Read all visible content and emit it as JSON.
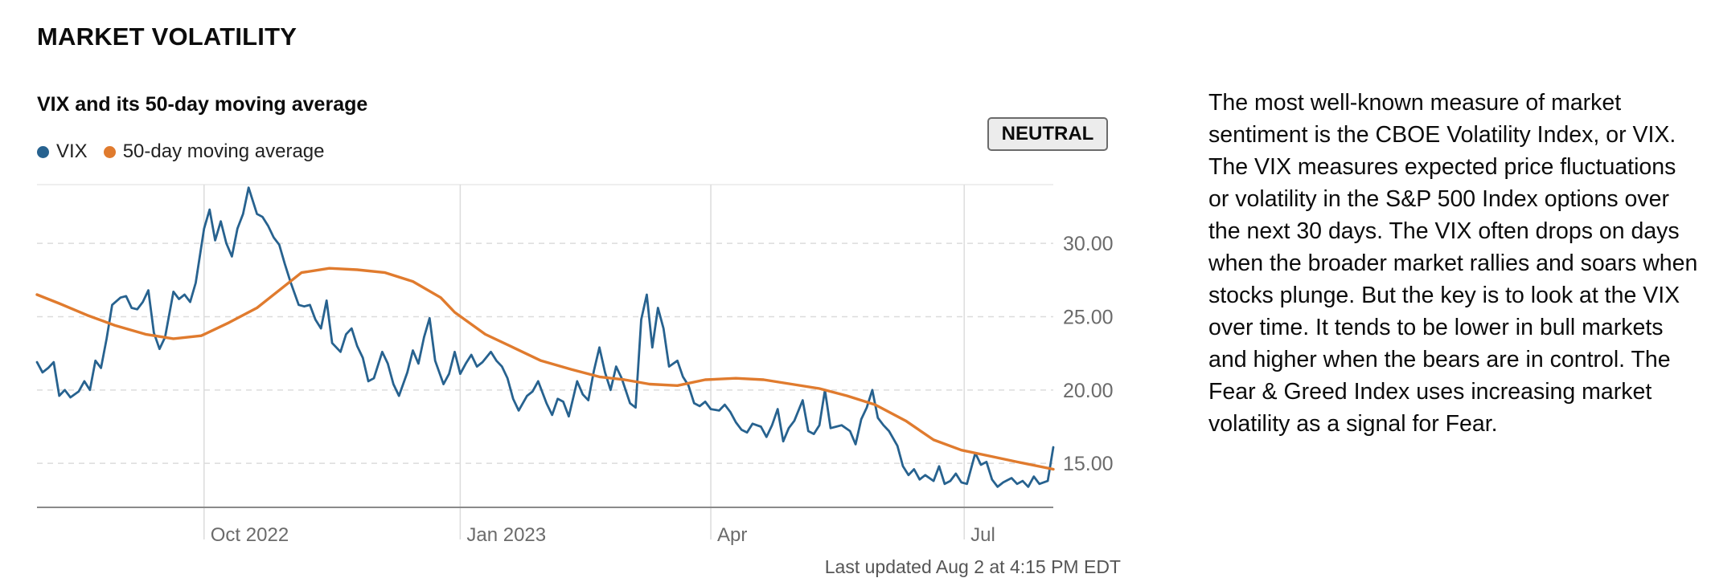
{
  "section_title": "MARKET VOLATILITY",
  "status_badge": "NEUTRAL",
  "last_updated": "Last updated Aug 2 at 4:15 PM EDT",
  "description": "The most well-known measure of market sentiment is the CBOE Volatility Index, or VIX. The VIX measures expected price fluctuations or volatility in the S&P 500 Index options over the next 30 days. The VIX often drops on days when the broader market rallies and soars when stocks plunge. But the key is to look at the VIX over time. It tends to be lower in bull markets and higher when the bears are in control. The Fear & Greed Index uses increasing market volatility as a signal for Fear.",
  "colors": {
    "vix": "#27628f",
    "moving_average": "#e07b2e",
    "grid": "#dcdcdc",
    "axis": "#8a8a8a"
  },
  "chart_data": {
    "type": "line",
    "title": "VIX and its 50-day moving average",
    "xlabel": "",
    "ylabel": "",
    "x_range": [
      "2022-08-02",
      "2023-08-02"
    ],
    "ylim": [
      12.0,
      34.0
    ],
    "y_axis_side": "right",
    "grid": true,
    "legend": "top-left",
    "x_tick_labels": [
      {
        "date": "2022-10-01",
        "label": "Oct 2022"
      },
      {
        "date": "2023-01-01",
        "label": "Jan 2023"
      },
      {
        "date": "2023-04-01",
        "label": "Apr"
      },
      {
        "date": "2023-07-01",
        "label": "Jul"
      }
    ],
    "y_tick_labels": [
      {
        "value": 15,
        "label": "15.00"
      },
      {
        "value": 20,
        "label": "20.00"
      },
      {
        "value": 25,
        "label": "25.00"
      },
      {
        "value": 30,
        "label": "30.00"
      }
    ],
    "series": [
      {
        "name": "VIX",
        "points": [
          [
            "2022-08-02",
            21.9
          ],
          [
            "2022-08-04",
            21.2
          ],
          [
            "2022-08-06",
            21.5
          ],
          [
            "2022-08-08",
            21.9
          ],
          [
            "2022-08-10",
            19.6
          ],
          [
            "2022-08-12",
            20.0
          ],
          [
            "2022-08-14",
            19.5
          ],
          [
            "2022-08-17",
            19.9
          ],
          [
            "2022-08-19",
            20.6
          ],
          [
            "2022-08-21",
            20.0
          ],
          [
            "2022-08-23",
            22.0
          ],
          [
            "2022-08-25",
            21.5
          ],
          [
            "2022-08-27",
            23.5
          ],
          [
            "2022-08-29",
            25.8
          ],
          [
            "2022-09-01",
            26.3
          ],
          [
            "2022-09-03",
            26.4
          ],
          [
            "2022-09-05",
            25.6
          ],
          [
            "2022-09-07",
            25.5
          ],
          [
            "2022-09-09",
            26.0
          ],
          [
            "2022-09-11",
            26.8
          ],
          [
            "2022-09-13",
            23.9
          ],
          [
            "2022-09-15",
            22.8
          ],
          [
            "2022-09-17",
            23.6
          ],
          [
            "2022-09-20",
            26.7
          ],
          [
            "2022-09-22",
            26.2
          ],
          [
            "2022-09-24",
            26.5
          ],
          [
            "2022-09-26",
            26.0
          ],
          [
            "2022-09-28",
            27.3
          ],
          [
            "2022-10-01",
            31.0
          ],
          [
            "2022-10-03",
            32.3
          ],
          [
            "2022-10-05",
            30.2
          ],
          [
            "2022-10-07",
            31.5
          ],
          [
            "2022-10-09",
            30.0
          ],
          [
            "2022-10-11",
            29.1
          ],
          [
            "2022-10-13",
            31.0
          ],
          [
            "2022-10-15",
            32.0
          ],
          [
            "2022-10-17",
            33.8
          ],
          [
            "2022-10-20",
            32.0
          ],
          [
            "2022-10-22",
            31.8
          ],
          [
            "2022-10-24",
            31.2
          ],
          [
            "2022-10-26",
            30.4
          ],
          [
            "2022-10-28",
            29.9
          ],
          [
            "2022-10-30",
            28.6
          ],
          [
            "2022-11-01",
            27.4
          ],
          [
            "2022-11-04",
            25.8
          ],
          [
            "2022-11-06",
            25.7
          ],
          [
            "2022-11-08",
            25.8
          ],
          [
            "2022-11-10",
            24.8
          ],
          [
            "2022-11-12",
            24.2
          ],
          [
            "2022-11-14",
            26.1
          ],
          [
            "2022-11-16",
            23.2
          ],
          [
            "2022-11-19",
            22.6
          ],
          [
            "2022-11-21",
            23.8
          ],
          [
            "2022-11-23",
            24.2
          ],
          [
            "2022-11-25",
            23.0
          ],
          [
            "2022-11-27",
            22.2
          ],
          [
            "2022-11-29",
            20.6
          ],
          [
            "2022-12-01",
            20.8
          ],
          [
            "2022-12-04",
            22.6
          ],
          [
            "2022-12-06",
            21.8
          ],
          [
            "2022-12-08",
            20.4
          ],
          [
            "2022-12-10",
            19.6
          ],
          [
            "2022-12-13",
            21.2
          ],
          [
            "2022-12-15",
            22.7
          ],
          [
            "2022-12-17",
            21.8
          ],
          [
            "2022-12-19",
            23.6
          ],
          [
            "2022-12-21",
            24.9
          ],
          [
            "2022-12-23",
            22.0
          ],
          [
            "2022-12-26",
            20.4
          ],
          [
            "2022-12-28",
            21.1
          ],
          [
            "2022-12-30",
            22.6
          ],
          [
            "2023-01-01",
            21.1
          ],
          [
            "2023-01-03",
            21.8
          ],
          [
            "2023-01-05",
            22.4
          ],
          [
            "2023-01-07",
            21.6
          ],
          [
            "2023-01-09",
            21.9
          ],
          [
            "2023-01-12",
            22.6
          ],
          [
            "2023-01-14",
            22.0
          ],
          [
            "2023-01-16",
            21.6
          ],
          [
            "2023-01-18",
            20.8
          ],
          [
            "2023-01-20",
            19.4
          ],
          [
            "2023-01-22",
            18.6
          ],
          [
            "2023-01-25",
            19.6
          ],
          [
            "2023-01-27",
            19.9
          ],
          [
            "2023-01-29",
            20.6
          ],
          [
            "2023-02-01",
            19.1
          ],
          [
            "2023-02-03",
            18.3
          ],
          [
            "2023-02-05",
            19.4
          ],
          [
            "2023-02-07",
            19.2
          ],
          [
            "2023-02-09",
            18.2
          ],
          [
            "2023-02-12",
            20.6
          ],
          [
            "2023-02-14",
            19.7
          ],
          [
            "2023-02-16",
            19.3
          ],
          [
            "2023-02-18",
            21.3
          ],
          [
            "2023-02-20",
            22.9
          ],
          [
            "2023-02-22",
            21.2
          ],
          [
            "2023-02-24",
            20.0
          ],
          [
            "2023-02-26",
            21.6
          ],
          [
            "2023-02-28",
            20.8
          ],
          [
            "2023-03-03",
            19.1
          ],
          [
            "2023-03-05",
            18.8
          ],
          [
            "2023-03-07",
            24.8
          ],
          [
            "2023-03-09",
            26.5
          ],
          [
            "2023-03-11",
            22.9
          ],
          [
            "2023-03-13",
            25.6
          ],
          [
            "2023-03-15",
            24.2
          ],
          [
            "2023-03-17",
            21.6
          ],
          [
            "2023-03-20",
            22.0
          ],
          [
            "2023-03-22",
            20.9
          ],
          [
            "2023-03-24",
            20.3
          ],
          [
            "2023-03-26",
            19.1
          ],
          [
            "2023-03-28",
            18.9
          ],
          [
            "2023-03-30",
            19.2
          ],
          [
            "2023-04-01",
            18.7
          ],
          [
            "2023-04-04",
            18.6
          ],
          [
            "2023-04-06",
            19.0
          ],
          [
            "2023-04-08",
            18.5
          ],
          [
            "2023-04-10",
            17.8
          ],
          [
            "2023-04-12",
            17.3
          ],
          [
            "2023-04-14",
            17.1
          ],
          [
            "2023-04-16",
            17.7
          ],
          [
            "2023-04-19",
            17.5
          ],
          [
            "2023-04-21",
            16.8
          ],
          [
            "2023-04-23",
            17.6
          ],
          [
            "2023-04-25",
            18.7
          ],
          [
            "2023-04-27",
            16.5
          ],
          [
            "2023-04-29",
            17.4
          ],
          [
            "2023-05-01",
            17.9
          ],
          [
            "2023-05-04",
            19.3
          ],
          [
            "2023-05-06",
            17.2
          ],
          [
            "2023-05-08",
            17.0
          ],
          [
            "2023-05-10",
            17.6
          ],
          [
            "2023-05-12",
            20.0
          ],
          [
            "2023-05-14",
            17.4
          ],
          [
            "2023-05-16",
            17.5
          ],
          [
            "2023-05-18",
            17.6
          ],
          [
            "2023-05-21",
            17.2
          ],
          [
            "2023-05-23",
            16.3
          ],
          [
            "2023-05-25",
            18.0
          ],
          [
            "2023-05-27",
            18.8
          ],
          [
            "2023-05-29",
            20.0
          ],
          [
            "2023-05-31",
            18.1
          ],
          [
            "2023-06-02",
            17.6
          ],
          [
            "2023-06-04",
            17.2
          ],
          [
            "2023-06-07",
            16.2
          ],
          [
            "2023-06-09",
            14.8
          ],
          [
            "2023-06-11",
            14.2
          ],
          [
            "2023-06-13",
            14.6
          ],
          [
            "2023-06-15",
            13.9
          ],
          [
            "2023-06-17",
            14.2
          ],
          [
            "2023-06-20",
            13.8
          ],
          [
            "2023-06-22",
            14.8
          ],
          [
            "2023-06-24",
            13.6
          ],
          [
            "2023-06-26",
            13.8
          ],
          [
            "2023-06-28",
            14.3
          ],
          [
            "2023-06-30",
            13.7
          ],
          [
            "2023-07-02",
            13.6
          ],
          [
            "2023-07-05",
            15.7
          ],
          [
            "2023-07-07",
            14.9
          ],
          [
            "2023-07-09",
            15.1
          ],
          [
            "2023-07-11",
            13.9
          ],
          [
            "2023-07-13",
            13.4
          ],
          [
            "2023-07-15",
            13.7
          ],
          [
            "2023-07-18",
            14.0
          ],
          [
            "2023-07-20",
            13.6
          ],
          [
            "2023-07-22",
            13.8
          ],
          [
            "2023-07-24",
            13.4
          ],
          [
            "2023-07-26",
            14.1
          ],
          [
            "2023-07-28",
            13.6
          ],
          [
            "2023-07-31",
            13.8
          ],
          [
            "2023-08-02",
            16.1
          ]
        ]
      },
      {
        "name": "50-day moving average",
        "points": [
          [
            "2022-08-02",
            26.5
          ],
          [
            "2022-08-10",
            25.9
          ],
          [
            "2022-08-20",
            25.1
          ],
          [
            "2022-08-30",
            24.4
          ],
          [
            "2022-09-10",
            23.8
          ],
          [
            "2022-09-20",
            23.5
          ],
          [
            "2022-09-30",
            23.7
          ],
          [
            "2022-10-10",
            24.6
          ],
          [
            "2022-10-20",
            25.6
          ],
          [
            "2022-10-30",
            27.1
          ],
          [
            "2022-11-05",
            28.0
          ],
          [
            "2022-11-15",
            28.3
          ],
          [
            "2022-11-25",
            28.2
          ],
          [
            "2022-12-05",
            28.0
          ],
          [
            "2022-12-15",
            27.4
          ],
          [
            "2022-12-25",
            26.3
          ],
          [
            "2022-12-30",
            25.3
          ],
          [
            "2023-01-10",
            23.8
          ],
          [
            "2023-01-20",
            22.9
          ],
          [
            "2023-01-30",
            22.0
          ],
          [
            "2023-02-10",
            21.4
          ],
          [
            "2023-02-20",
            20.9
          ],
          [
            "2023-03-01",
            20.7
          ],
          [
            "2023-03-10",
            20.4
          ],
          [
            "2023-03-20",
            20.3
          ],
          [
            "2023-03-30",
            20.7
          ],
          [
            "2023-04-10",
            20.8
          ],
          [
            "2023-04-20",
            20.7
          ],
          [
            "2023-04-30",
            20.4
          ],
          [
            "2023-05-10",
            20.1
          ],
          [
            "2023-05-20",
            19.6
          ],
          [
            "2023-05-30",
            19.0
          ],
          [
            "2023-06-10",
            17.9
          ],
          [
            "2023-06-20",
            16.6
          ],
          [
            "2023-06-30",
            15.9
          ],
          [
            "2023-07-10",
            15.5
          ],
          [
            "2023-07-20",
            15.1
          ],
          [
            "2023-08-02",
            14.6
          ]
        ]
      }
    ]
  }
}
